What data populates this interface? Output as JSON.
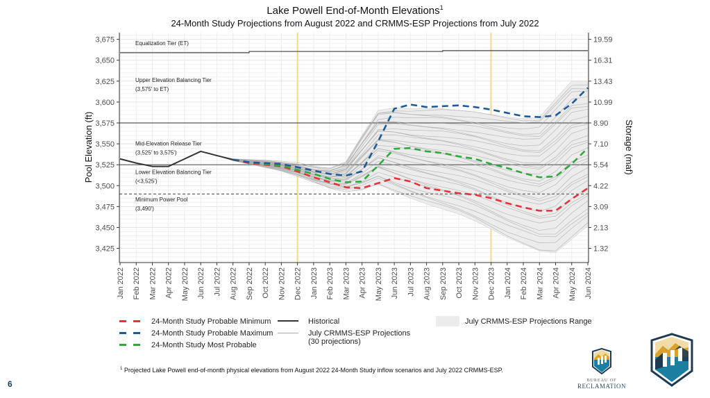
{
  "page_number": "6",
  "footnote": {
    "marker": "1",
    "text": "Projected Lake Powell end-of-month physical elevations from August 2022 24-Month Study inflow scenarios and July 2022 CRMMS-ESP."
  },
  "logos": {
    "small_line1": "BUREAU OF",
    "small_line2": "RECLAMATION"
  },
  "colors": {
    "min": "#e3333b",
    "max": "#1f5a96",
    "most": "#2eaa3c",
    "historical": "#333333",
    "ensemble": "#a8a8a8",
    "range": "#ececec",
    "year_marker": "#f5d98a"
  },
  "chart_data": {
    "type": "line",
    "title": "Lake Powell End-of-Month  Elevations",
    "title_superscript": "1",
    "subtitle": "24-Month Study Projections from August 2022 and CRMMS-ESP Projections from July 2022",
    "ylabel": "Pool Elevation (ft)",
    "y2label": "Storage (maf)",
    "xlabel": "",
    "ylim": [
      3408,
      3683
    ],
    "yticks": [
      3425,
      3450,
      3475,
      3500,
      3525,
      3550,
      3575,
      3600,
      3625,
      3650,
      3675
    ],
    "ytick_labels": [
      "3,425",
      "3,450",
      "3,475",
      "3,500",
      "3,525",
      "3,550",
      "3,575",
      "3,600",
      "3,625",
      "3,650",
      "3,675"
    ],
    "y2ticks": [
      {
        "elev": 3425,
        "label": "1.32"
      },
      {
        "elev": 3450,
        "label": "2.13"
      },
      {
        "elev": 3475,
        "label": "3.09"
      },
      {
        "elev": 3500,
        "label": "4.22"
      },
      {
        "elev": 3525,
        "label": "5.54"
      },
      {
        "elev": 3550,
        "label": "7.10"
      },
      {
        "elev": 3575,
        "label": "8.90"
      },
      {
        "elev": 3600,
        "label": "10.99"
      },
      {
        "elev": 3625,
        "label": "13.43"
      },
      {
        "elev": 3650,
        "label": "16.31"
      },
      {
        "elev": 3675,
        "label": "19.59"
      }
    ],
    "categories": [
      "Jan 2022",
      "Feb 2022",
      "Mar 2022",
      "Apr 2022",
      "May 2022",
      "Jun 2022",
      "Jul 2022",
      "Aug 2022",
      "Sep 2022",
      "Oct 2022",
      "Nov 2022",
      "Dec 2022",
      "Jan 2023",
      "Feb 2023",
      "Mar 2023",
      "Apr 2023",
      "May 2023",
      "Jun 2023",
      "Jul 2023",
      "Aug 2023",
      "Sep 2023",
      "Oct 2023",
      "Nov 2023",
      "Dec 2023",
      "Jan 2024",
      "Feb 2024",
      "Mar 2024",
      "Apr 2024",
      "May 2024",
      "Jun 2024"
    ],
    "grid": true,
    "year_markers": [
      "Dec 2022",
      "Dec 2023"
    ],
    "reference_lines": [
      {
        "name": "Upper/Mid tier boundary",
        "value": 3575,
        "style": "solid"
      },
      {
        "name": "Mid/Lower tier boundary",
        "value": 3525,
        "style": "solid"
      },
      {
        "name": "Minimum Power Pool",
        "value": 3490,
        "style": "dashed"
      }
    ],
    "equalization_tier": {
      "name": "Equalization Tier (ET)",
      "steps": [
        {
          "from": "Jan 2022",
          "to": "Sep 2022",
          "value": 3659
        },
        {
          "from": "Sep 2022",
          "to": "Sep 2023",
          "value": 3660.5
        },
        {
          "from": "Sep 2023",
          "to": "Jun 2024",
          "value": 3661.5
        }
      ]
    },
    "annotations": [
      {
        "line1": "Equalization Tier (ET)",
        "line2": "",
        "y": 3668
      },
      {
        "line1": "Upper Elevation Balancing Tier",
        "line2": "(3,575' to ET)",
        "y": 3624
      },
      {
        "line1": "Mid-Elevation Release Tier",
        "line2": "(3,525' to 3,575')",
        "y": 3548
      },
      {
        "line1": "Lower Elevation Balancing Tier",
        "line2": "(<3,525')",
        "y": 3514
      },
      {
        "line1": "Minimum Power Pool",
        "line2": "(3,490')",
        "y": 3481
      }
    ],
    "series": [
      {
        "name": "Historical",
        "style": "solid",
        "start": "Jan 2022",
        "values": [
          3532,
          3527,
          3523,
          3523,
          3532,
          3541,
          3536,
          3531
        ]
      },
      {
        "name": "24-Month Study Probable Maximum",
        "style": "dashed",
        "start": "Aug 2022",
        "values": [
          3531,
          3528,
          3527,
          3526,
          3522,
          3518,
          3514,
          3512,
          3517,
          3553,
          3592,
          3597,
          3594,
          3595,
          3596,
          3594,
          3591,
          3587,
          3583,
          3582,
          3584,
          3598,
          3617
        ]
      },
      {
        "name": "24-Month Study Most Probable",
        "style": "dashed",
        "start": "Aug 2022",
        "values": [
          3531,
          3528,
          3526,
          3524,
          3519,
          3514,
          3508,
          3504,
          3505,
          3524,
          3544,
          3545,
          3541,
          3539,
          3535,
          3532,
          3526,
          3521,
          3515,
          3510,
          3511,
          3526,
          3545
        ]
      },
      {
        "name": "24-Month Study Probable Minimum",
        "style": "dashed",
        "start": "Aug 2022",
        "values": [
          3531,
          3527,
          3525,
          3523,
          3517,
          3510,
          3504,
          3498,
          3497,
          3503,
          3509,
          3505,
          3497,
          3494,
          3491,
          3489,
          3485,
          3479,
          3474,
          3470,
          3470,
          3484,
          3497
        ]
      }
    ],
    "ensemble": {
      "name": "July CRMMS-ESP Projections (30 projections)",
      "start": "Jul 2022",
      "range_upper": [
        3536,
        3532,
        3531,
        3530,
        3528,
        3526,
        3522,
        3520,
        3528,
        3560,
        3590,
        3593,
        3592,
        3592,
        3592,
        3590,
        3588,
        3585,
        3582,
        3580,
        3582,
        3604,
        3625,
        3625
      ],
      "range_lower": [
        3536,
        3530,
        3526,
        3522,
        3518,
        3512,
        3505,
        3498,
        3494,
        3496,
        3502,
        3493,
        3485,
        3478,
        3472,
        3466,
        3458,
        3448,
        3438,
        3430,
        3422,
        3420,
        3436,
        3452
      ]
    },
    "legend": [
      {
        "label": "24-Month Study Probable Minimum",
        "type": "dashed",
        "color_key": "min"
      },
      {
        "label": "24-Month Study Probable Maximum",
        "type": "dashed",
        "color_key": "max"
      },
      {
        "label": "24-Month Study Most Probable",
        "type": "dashed",
        "color_key": "most"
      },
      {
        "label": "Historical",
        "type": "solid",
        "color_key": "historical"
      },
      {
        "label": "July CRMMS-ESP Projections",
        "label2": "(30 projections)",
        "type": "thin",
        "color_key": "ensemble"
      },
      {
        "label": "July CRMMS-ESP Projections Range",
        "type": "fill",
        "color_key": "range"
      }
    ],
    "legend_position": "bottom"
  }
}
